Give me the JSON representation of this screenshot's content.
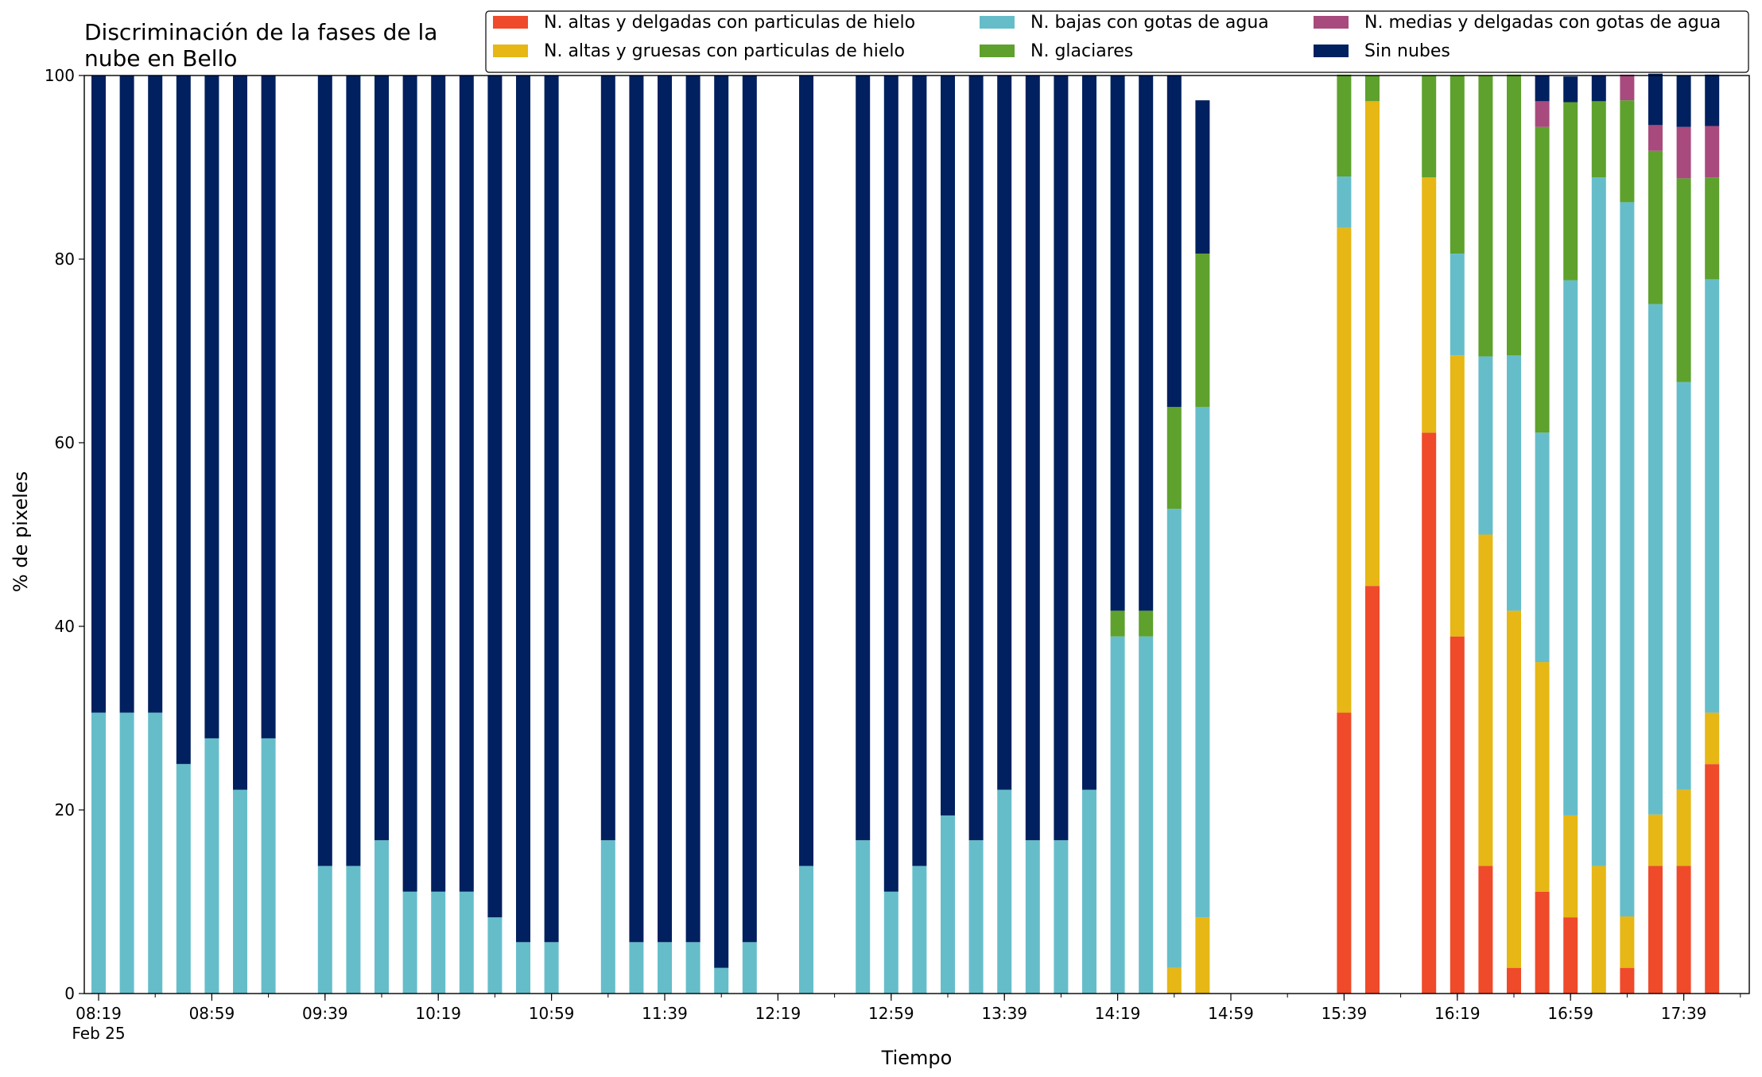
{
  "chart_data": {
    "type": "bar",
    "stacked": true,
    "title": "Discriminación de la fases de la\nnube en Bello",
    "xlabel": "Tiempo",
    "ylabel": "% de pixeles",
    "ylim": [
      0,
      100
    ],
    "yticks": [
      0,
      20,
      40,
      60,
      80,
      100
    ],
    "xticks": [
      {
        "slot": 0,
        "label": "08:19",
        "sublabel": "Feb 25"
      },
      {
        "slot": 4,
        "label": "08:59"
      },
      {
        "slot": 8,
        "label": "09:39"
      },
      {
        "slot": 12,
        "label": "10:19"
      },
      {
        "slot": 16,
        "label": "10:59"
      },
      {
        "slot": 20,
        "label": "11:39"
      },
      {
        "slot": 24,
        "label": "12:19"
      },
      {
        "slot": 28,
        "label": "12:59"
      },
      {
        "slot": 32,
        "label": "13:39"
      },
      {
        "slot": 36,
        "label": "14:19"
      },
      {
        "slot": 40,
        "label": "14:59"
      },
      {
        "slot": 44,
        "label": "15:39"
      },
      {
        "slot": 48,
        "label": "16:19"
      },
      {
        "slot": 52,
        "label": "16:59"
      },
      {
        "slot": 56,
        "label": "17:39"
      }
    ],
    "slot_count": 59,
    "legend": {
      "placement": "top-right",
      "columns": 3,
      "order": [
        0,
        1,
        2,
        3,
        4,
        5
      ]
    },
    "series": [
      {
        "name": "N. altas y delgadas con particulas de hielo",
        "color": "#ef4a2a",
        "values": [
          0,
          0,
          0,
          0,
          0,
          0,
          0,
          null,
          0,
          0,
          0,
          0,
          0,
          0,
          0,
          0,
          0,
          null,
          0,
          0,
          0,
          0,
          0,
          0,
          null,
          0,
          null,
          0,
          0,
          0,
          0,
          0,
          0,
          0,
          0,
          0,
          0,
          0,
          0,
          0,
          null,
          null,
          null,
          null,
          30.6,
          44.4,
          null,
          61.1,
          38.9,
          13.9,
          2.8,
          11.1,
          8.3,
          0,
          2.8,
          13.9,
          13.9,
          25.0,
          null
        ]
      },
      {
        "name": "N. altas y gruesas con particulas de hielo",
        "color": "#e6b715",
        "values": [
          0,
          0,
          0,
          0,
          0,
          0,
          0,
          null,
          0,
          0,
          0,
          0,
          0,
          0,
          0,
          0,
          0,
          null,
          0,
          0,
          0,
          0,
          0,
          0,
          null,
          0,
          null,
          0,
          0,
          0,
          0,
          0,
          0,
          0,
          0,
          0,
          0,
          0,
          2.8,
          8.3,
          null,
          null,
          null,
          null,
          52.8,
          52.8,
          null,
          27.8,
          30.6,
          36.1,
          38.9,
          25.0,
          11.1,
          13.9,
          5.6,
          5.6,
          8.3,
          5.6,
          null
        ]
      },
      {
        "name": "N. bajas con gotas de agua",
        "color": "#66bdca",
        "values": [
          30.6,
          30.6,
          30.6,
          25.0,
          27.8,
          22.2,
          27.8,
          null,
          13.9,
          13.9,
          16.7,
          11.1,
          11.1,
          11.1,
          8.3,
          5.6,
          5.6,
          null,
          16.7,
          5.6,
          5.6,
          5.6,
          2.8,
          5.6,
          null,
          13.9,
          null,
          16.7,
          11.1,
          13.9,
          19.4,
          16.7,
          22.2,
          16.7,
          16.7,
          22.2,
          38.9,
          38.9,
          50.0,
          55.6,
          null,
          null,
          null,
          null,
          5.6,
          0,
          null,
          0,
          11.1,
          19.4,
          27.8,
          25.0,
          58.3,
          75.0,
          77.8,
          55.6,
          44.4,
          47.2,
          null
        ]
      },
      {
        "name": "N. glaciares",
        "color": "#5ea12d",
        "values": [
          0,
          0,
          0,
          0,
          0,
          0,
          0,
          null,
          0,
          0,
          0,
          0,
          0,
          0,
          0,
          0,
          0,
          null,
          0,
          0,
          0,
          0,
          0,
          0,
          null,
          0,
          null,
          0,
          0,
          0,
          0,
          0,
          0,
          0,
          0,
          0,
          2.8,
          2.8,
          11.1,
          16.7,
          null,
          null,
          null,
          null,
          11.1,
          2.8,
          null,
          11.1,
          19.4,
          30.6,
          30.6,
          33.3,
          19.4,
          8.3,
          11.1,
          16.7,
          22.2,
          11.1,
          null
        ]
      },
      {
        "name": "N. medias y delgadas con gotas de agua",
        "color": "#a84a7e",
        "values": [
          0,
          0,
          0,
          0,
          0,
          0,
          0,
          null,
          0,
          0,
          0,
          0,
          0,
          0,
          0,
          0,
          0,
          null,
          0,
          0,
          0,
          0,
          0,
          0,
          null,
          0,
          null,
          0,
          0,
          0,
          0,
          0,
          0,
          0,
          0,
          0,
          0,
          0,
          0,
          0,
          null,
          null,
          null,
          null,
          0,
          0,
          null,
          0,
          0,
          0,
          0,
          2.8,
          0,
          0,
          2.8,
          2.8,
          5.6,
          5.6,
          null
        ]
      },
      {
        "name": "Sin nubes",
        "color": "#00205f",
        "values": [
          69.4,
          69.4,
          69.4,
          75.0,
          72.2,
          77.8,
          72.2,
          null,
          86.1,
          86.1,
          83.3,
          88.9,
          88.9,
          88.9,
          91.7,
          94.4,
          94.4,
          null,
          83.3,
          94.4,
          94.4,
          94.4,
          97.2,
          94.4,
          null,
          86.1,
          null,
          83.3,
          88.9,
          86.1,
          80.6,
          83.3,
          77.8,
          83.3,
          83.3,
          77.8,
          58.3,
          58.3,
          36.1,
          16.7,
          null,
          null,
          null,
          null,
          0,
          0,
          null,
          0,
          0,
          0,
          0,
          2.8,
          2.8,
          2.8,
          0,
          5.6,
          5.6,
          5.6,
          null
        ]
      }
    ]
  }
}
